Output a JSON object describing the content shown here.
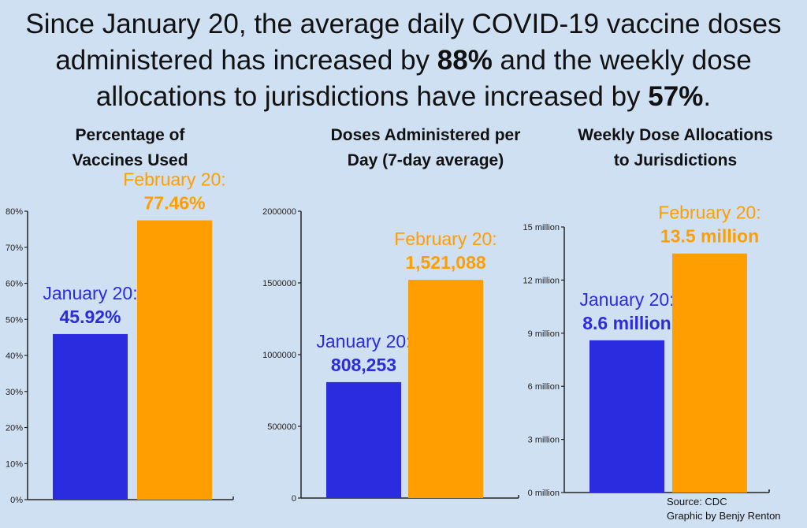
{
  "headline": {
    "part1": "Since January 20, the average daily COVID-19 vaccine doses administered has increased by ",
    "pct1": "88%",
    "part2": " and the weekly dose allocations to jurisdictions have increased by ",
    "pct2": "57%",
    "part3": "."
  },
  "colors": {
    "january": "#2b2be0",
    "february": "#ff9e00",
    "axis": "#222222"
  },
  "chart_data": [
    {
      "type": "bar",
      "title_lines": [
        "Percentage of",
        "Vaccines Used"
      ],
      "categories": [
        "January 20",
        "February 20"
      ],
      "values": [
        45.92,
        77.46
      ],
      "label_names": [
        "January 20:",
        "February 20:"
      ],
      "label_values": [
        "45.92%",
        "77.46%"
      ],
      "ylim": [
        0,
        80
      ],
      "yticks": [
        0,
        10,
        20,
        30,
        40,
        50,
        60,
        70,
        80
      ],
      "ytick_labels": [
        "0%",
        "10%",
        "20%",
        "30%",
        "40%",
        "50%",
        "60%",
        "70%",
        "80%"
      ],
      "xlabel": "",
      "ylabel": ""
    },
    {
      "type": "bar",
      "title_lines": [
        "Doses Administered per",
        "Day (7-day average)"
      ],
      "categories": [
        "January 20",
        "February 20"
      ],
      "values": [
        808253,
        1521088
      ],
      "label_names": [
        "January 20:",
        "February 20:"
      ],
      "label_values": [
        "808,253",
        "1,521,088"
      ],
      "ylim": [
        0,
        2000000
      ],
      "yticks": [
        0,
        500000,
        1000000,
        1500000,
        2000000
      ],
      "ytick_labels": [
        "0",
        "500000",
        "1000000",
        "1500000",
        "2000000"
      ],
      "xlabel": "",
      "ylabel": ""
    },
    {
      "type": "bar",
      "title_lines": [
        "Weekly Dose Allocations",
        "to Jurisdictions"
      ],
      "categories": [
        "January 20",
        "February 20"
      ],
      "values": [
        8.6,
        13.5
      ],
      "label_names": [
        "January 20:",
        "February 20:"
      ],
      "label_values": [
        "8.6 million",
        "13.5 million"
      ],
      "ylim": [
        0,
        15
      ],
      "yticks": [
        0,
        3,
        6,
        9,
        12,
        15
      ],
      "ytick_labels": [
        "0 million",
        "3 million",
        "6 million",
        "9 million",
        "12 million",
        "15 million"
      ],
      "xlabel": "",
      "ylabel": ""
    }
  ],
  "credits": {
    "source": "Source: CDC",
    "author": "Graphic by Benjy Renton"
  }
}
